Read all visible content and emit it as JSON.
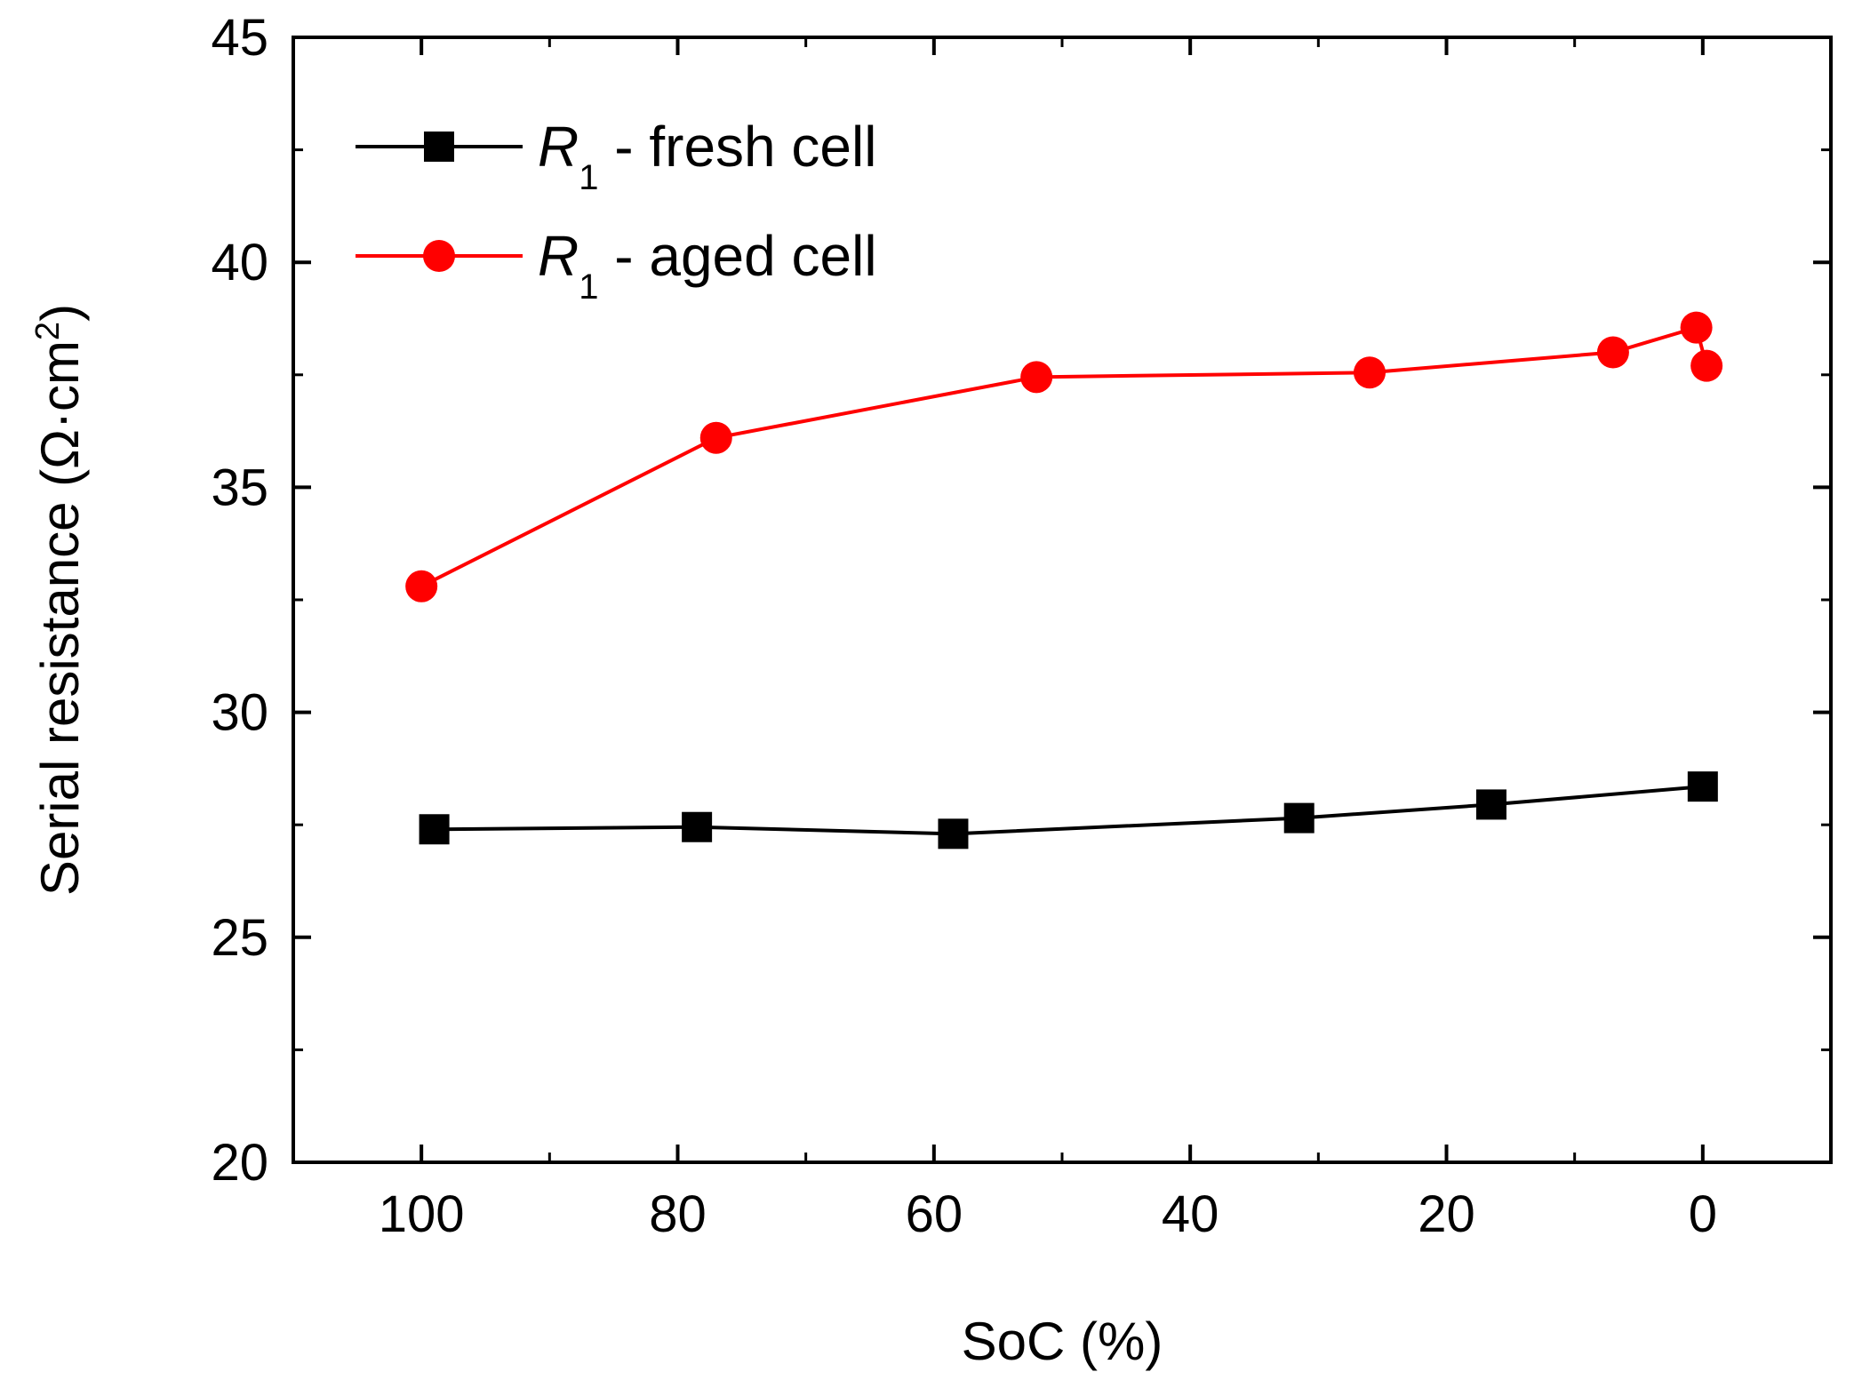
{
  "chart_data": {
    "type": "line",
    "xlabel": "SoC (%)",
    "ylabel": "Serial resistance (Ω·cm²)",
    "ylabel_parts": {
      "main": "Serial resistance (Ω·cm",
      "sup": "2",
      "close": ")"
    },
    "xlim": [
      110,
      -10
    ],
    "ylim": [
      20,
      45
    ],
    "x_ticks": [
      100,
      80,
      60,
      40,
      20,
      0
    ],
    "x_tick_labels": [
      "100",
      "80",
      "60",
      "40",
      "20",
      "0"
    ],
    "x_minor_ticks": [
      90,
      70,
      50,
      30,
      10
    ],
    "y_ticks": [
      20,
      25,
      30,
      35,
      40,
      45
    ],
    "y_tick_labels": [
      "20",
      "25",
      "30",
      "35",
      "40",
      "45"
    ],
    "y_minor_ticks": [
      22.5,
      27.5,
      32.5,
      37.5,
      42.5
    ],
    "grid": false,
    "legend_position": "top-left",
    "series": [
      {
        "name": "R1 - fresh cell",
        "legend": {
          "var": "R",
          "sub": "1",
          "text": " - fresh cell"
        },
        "color": "#000000",
        "marker": "square",
        "x": [
          99,
          78.5,
          58.5,
          31.5,
          16.5,
          0
        ],
        "y": [
          27.4,
          27.45,
          27.3,
          27.65,
          27.95,
          28.35
        ]
      },
      {
        "name": "R1 - aged cell",
        "legend": {
          "var": "R",
          "sub": "1",
          "text": " - aged cell"
        },
        "color": "#ff0000",
        "marker": "circle",
        "x": [
          100,
          77,
          52,
          26,
          7,
          0.5,
          -0.3
        ],
        "y": [
          32.8,
          36.1,
          37.45,
          37.55,
          38.0,
          38.55,
          37.7
        ]
      }
    ]
  }
}
